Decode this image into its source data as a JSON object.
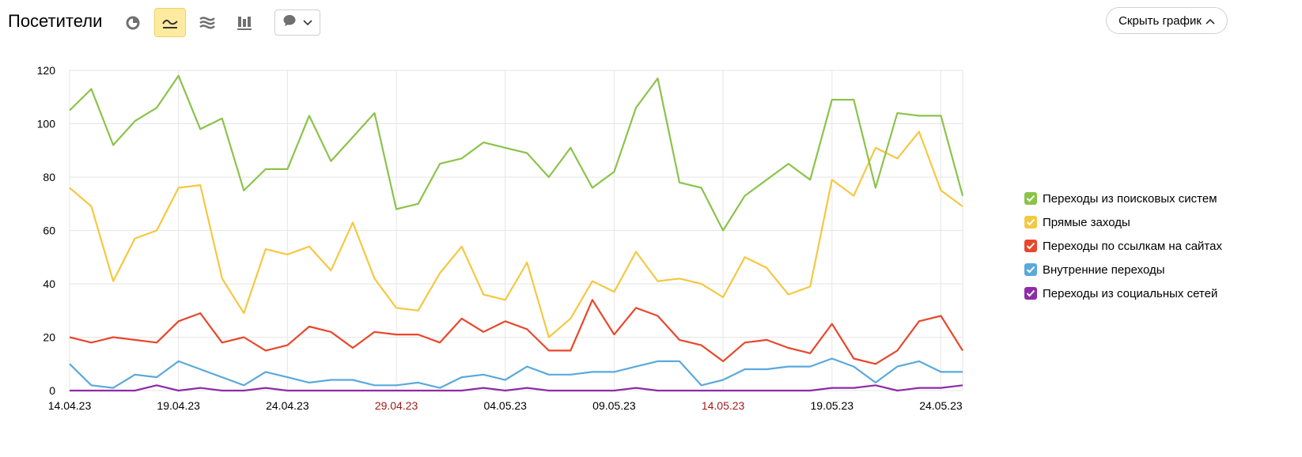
{
  "header": {
    "title": "Посетители",
    "hide_chart_label": "Скрыть график"
  },
  "toolbar": {
    "buttons": [
      {
        "icon": "pie-chart-icon",
        "active": false
      },
      {
        "icon": "line-chart-icon",
        "active": true
      },
      {
        "icon": "area-chart-icon",
        "active": false
      },
      {
        "icon": "column-chart-icon",
        "active": false
      }
    ],
    "annotation_dropdown_icon": "speech-bubble-icon"
  },
  "colors": {
    "active_button_bg": "#ffeba0",
    "grid": "#e6e6e6",
    "holiday_label": "#a11a1a"
  },
  "chart_data": {
    "type": "line",
    "x": [
      "14.04.23",
      "15.04.23",
      "16.04.23",
      "17.04.23",
      "18.04.23",
      "19.04.23",
      "20.04.23",
      "21.04.23",
      "22.04.23",
      "23.04.23",
      "24.04.23",
      "25.04.23",
      "26.04.23",
      "27.04.23",
      "28.04.23",
      "29.04.23",
      "30.04.23",
      "01.05.23",
      "02.05.23",
      "03.05.23",
      "04.05.23",
      "05.05.23",
      "06.05.23",
      "07.05.23",
      "08.05.23",
      "09.05.23",
      "10.05.23",
      "11.05.23",
      "12.05.23",
      "13.05.23",
      "14.05.23",
      "15.05.23",
      "16.05.23",
      "17.05.23",
      "18.05.23",
      "19.05.23",
      "20.05.23",
      "21.05.23",
      "22.05.23",
      "23.05.23",
      "24.05.23",
      "25.05.23"
    ],
    "x_tick_labels": [
      {
        "label": "14.04.23",
        "index": 0,
        "highlight": false
      },
      {
        "label": "19.04.23",
        "index": 5,
        "highlight": false
      },
      {
        "label": "24.04.23",
        "index": 10,
        "highlight": false
      },
      {
        "label": "29.04.23",
        "index": 15,
        "highlight": true
      },
      {
        "label": "04.05.23",
        "index": 20,
        "highlight": false
      },
      {
        "label": "09.05.23",
        "index": 25,
        "highlight": false
      },
      {
        "label": "14.05.23",
        "index": 30,
        "highlight": true
      },
      {
        "label": "19.05.23",
        "index": 35,
        "highlight": false
      },
      {
        "label": "24.05.23",
        "index": 40,
        "highlight": false
      }
    ],
    "y_ticks": [
      0,
      20,
      40,
      60,
      80,
      100,
      120
    ],
    "ylim": [
      0,
      120
    ],
    "grid": true,
    "legend_position": "right",
    "series": [
      {
        "name": "Переходы из поисковых систем",
        "color": "#8bc34a",
        "values": [
          105,
          113,
          92,
          101,
          106,
          118,
          98,
          102,
          75,
          83,
          83,
          103,
          86,
          95,
          104,
          68,
          70,
          85,
          87,
          93,
          91,
          89,
          80,
          91,
          76,
          82,
          106,
          117,
          78,
          76,
          60,
          73,
          79,
          85,
          79,
          109,
          109,
          76,
          104,
          103,
          103,
          73
        ]
      },
      {
        "name": "Прямые заходы",
        "color": "#f5c842",
        "values": [
          76,
          69,
          41,
          57,
          60,
          76,
          77,
          42,
          29,
          53,
          51,
          54,
          45,
          63,
          42,
          31,
          30,
          44,
          54,
          36,
          34,
          48,
          20,
          27,
          41,
          37,
          52,
          41,
          42,
          40,
          35,
          50,
          46,
          36,
          39,
          79,
          73,
          91,
          87,
          97,
          75,
          69
        ]
      },
      {
        "name": "Переходы по ссылкам на сайтах",
        "color": "#e8472b",
        "values": [
          20,
          18,
          20,
          19,
          18,
          26,
          29,
          18,
          20,
          15,
          17,
          24,
          22,
          16,
          22,
          21,
          21,
          18,
          27,
          22,
          26,
          23,
          15,
          15,
          34,
          21,
          31,
          28,
          19,
          17,
          11,
          18,
          19,
          16,
          14,
          25,
          12,
          10,
          15,
          26,
          28,
          15
        ]
      },
      {
        "name": "Внутренние переходы",
        "color": "#5aa9dc",
        "values": [
          10,
          2,
          1,
          6,
          5,
          11,
          8,
          5,
          2,
          7,
          5,
          3,
          4,
          4,
          2,
          2,
          3,
          1,
          5,
          6,
          4,
          9,
          6,
          6,
          7,
          7,
          9,
          11,
          11,
          2,
          4,
          8,
          8,
          9,
          9,
          12,
          9,
          3,
          9,
          11,
          7,
          7
        ]
      },
      {
        "name": "Переходы из социальных сетей",
        "color": "#8e2ba6",
        "values": [
          0,
          0,
          0,
          0,
          2,
          0,
          1,
          0,
          0,
          1,
          0,
          0,
          0,
          0,
          0,
          0,
          0,
          0,
          0,
          1,
          0,
          1,
          0,
          0,
          0,
          0,
          1,
          0,
          0,
          0,
          0,
          0,
          0,
          0,
          0,
          1,
          1,
          2,
          0,
          1,
          1,
          2
        ]
      }
    ]
  }
}
